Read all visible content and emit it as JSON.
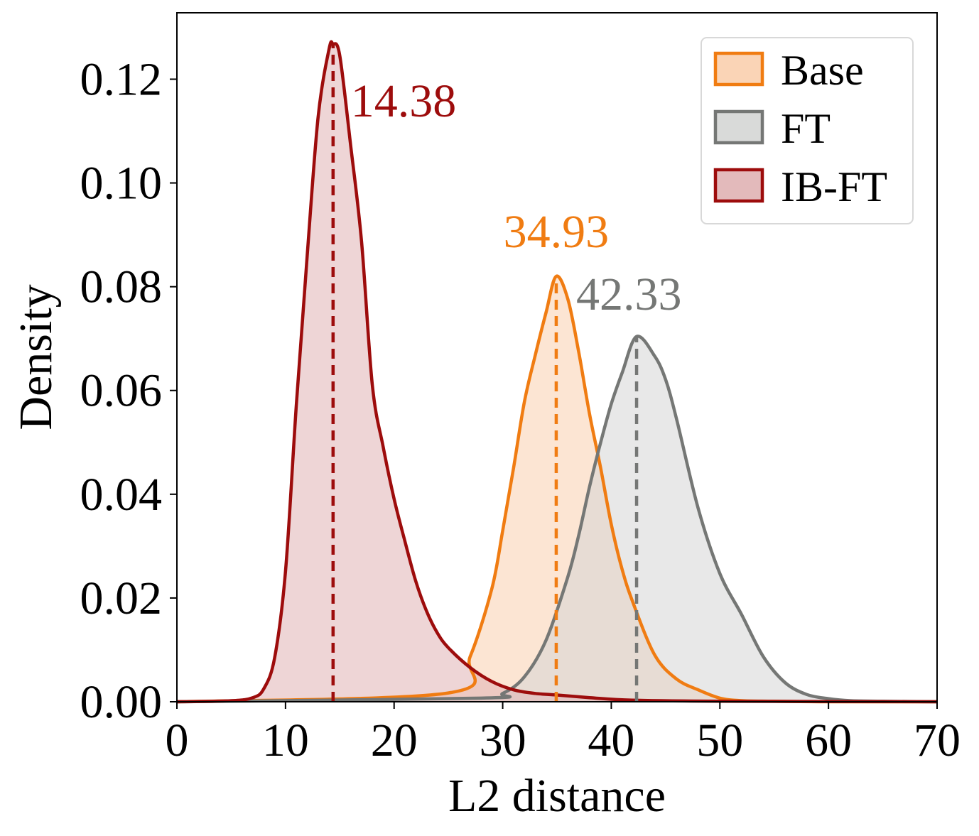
{
  "chart_data": {
    "type": "area",
    "xlabel": "L2 distance",
    "ylabel": "Density",
    "xlim": [
      0,
      70
    ],
    "ylim": [
      0,
      0.1328
    ],
    "xticks": [
      "0",
      "10",
      "20",
      "30",
      "40",
      "50",
      "60",
      "70"
    ],
    "xtick_values": [
      0,
      10,
      20,
      30,
      40,
      50,
      60,
      70
    ],
    "yticks": [
      "0.00",
      "0.02",
      "0.04",
      "0.06",
      "0.08",
      "0.10",
      "0.12"
    ],
    "ytick_values": [
      0,
      0.02,
      0.04,
      0.06,
      0.08,
      0.1,
      0.12
    ],
    "grid": false,
    "legend_position": "top-right",
    "series": [
      {
        "name": "Base",
        "line_color": "#f07c12",
        "fill_color": "#f9cfae",
        "mean": 34.93,
        "mean_label": "34.93",
        "x": [
          0,
          25,
          27,
          29,
          30,
          31,
          32,
          33,
          34,
          34.93,
          36,
          37,
          38,
          39,
          40,
          41,
          42,
          44,
          46,
          48,
          50,
          52,
          55,
          60,
          70
        ],
        "y": [
          0,
          0.0017,
          0.0087,
          0.0218,
          0.033,
          0.0451,
          0.0578,
          0.0668,
          0.0751,
          0.082,
          0.0776,
          0.0674,
          0.0554,
          0.0453,
          0.0342,
          0.0255,
          0.0191,
          0.009,
          0.0044,
          0.0023,
          0.0007,
          0.0002,
          0.0001,
          0,
          0
        ]
      },
      {
        "name": "FT",
        "line_color": "#757775",
        "fill_color": "#d5d6d5",
        "mean": 42.33,
        "mean_label": "42.33",
        "x": [
          0,
          28,
          30,
          32,
          34,
          36,
          37,
          38,
          39,
          40,
          41,
          42.33,
          44,
          45,
          46,
          48,
          50,
          52,
          54,
          56,
          58,
          60,
          62,
          65,
          70
        ],
        "y": [
          0,
          0.0007,
          0.0016,
          0.0048,
          0.0119,
          0.0241,
          0.0321,
          0.0415,
          0.0498,
          0.0574,
          0.0634,
          0.0704,
          0.0666,
          0.0621,
          0.0546,
          0.0373,
          0.0247,
          0.0168,
          0.0087,
          0.0037,
          0.0014,
          0.0006,
          0.0002,
          0.0001,
          0
        ]
      },
      {
        "name": "IB-FT",
        "line_color": "#9d0c0c",
        "fill_color": "#e0b2b4",
        "mean": 14.38,
        "mean_label": "14.38",
        "x": [
          0,
          5,
          7,
          8,
          9,
          10,
          11,
          12,
          13,
          14,
          14.38,
          15,
          16,
          17,
          18,
          19,
          20,
          21,
          22,
          23,
          24,
          25,
          27,
          29,
          31,
          33,
          35,
          38,
          42,
          50,
          70
        ],
        "y": [
          0,
          0.0002,
          0.0008,
          0.0025,
          0.0085,
          0.0252,
          0.0572,
          0.086,
          0.1126,
          0.1257,
          0.1268,
          0.1245,
          0.1072,
          0.0887,
          0.061,
          0.0491,
          0.0391,
          0.0309,
          0.0232,
          0.0174,
          0.0132,
          0.0104,
          0.0066,
          0.0039,
          0.0023,
          0.0016,
          0.0013,
          0.0008,
          0.0003,
          0.0001,
          0
        ]
      }
    ]
  }
}
